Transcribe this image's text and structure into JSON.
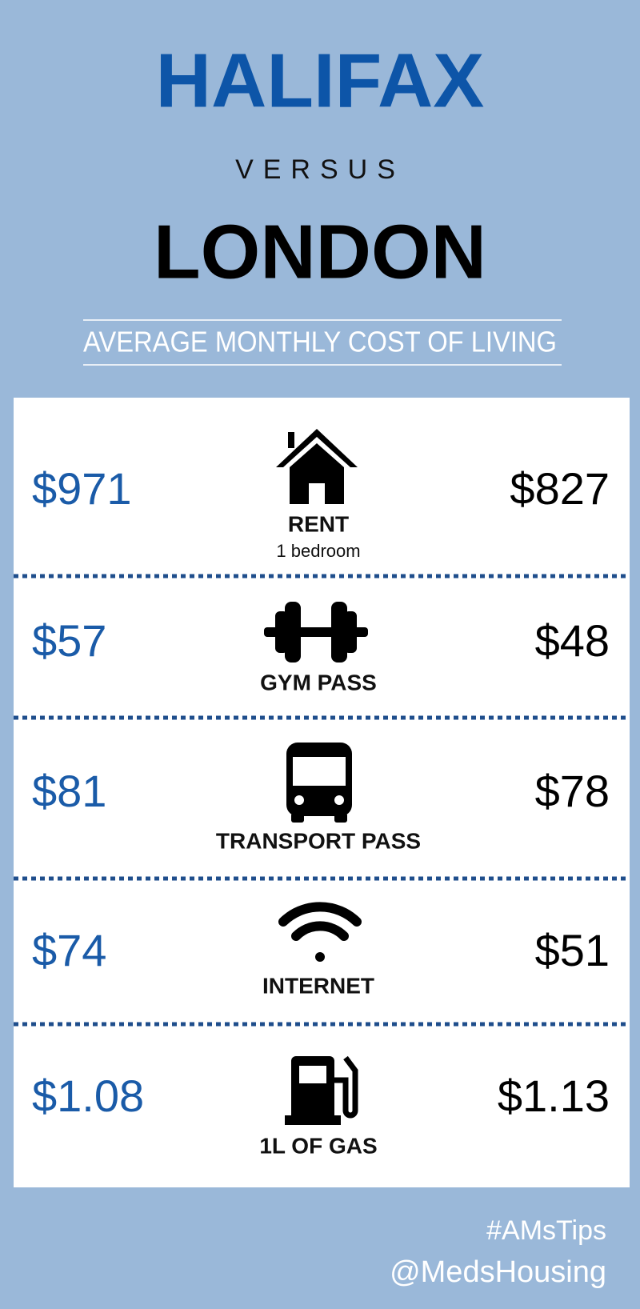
{
  "header": {
    "title": "HALIFAX",
    "versus": "VERSUS",
    "subtitle": "LONDON",
    "caption": "AVERAGE MONTHLY COST OF LIVING"
  },
  "items": [
    {
      "halifax": "$971",
      "label": "RENT",
      "note": "1 bedroom",
      "london": "$827"
    },
    {
      "halifax": "$57",
      "label": "GYM PASS",
      "london": "$48"
    },
    {
      "halifax": "$81",
      "label": "TRANSPORT PASS",
      "london": "$78"
    },
    {
      "halifax": "$74",
      "label": "INTERNET",
      "london": "$51"
    },
    {
      "halifax": "$1.08",
      "label": "1L OF GAS",
      "london": "$1.13"
    }
  ],
  "footer": {
    "hashtag": "#AMsTips",
    "handle": "@MedsHousing"
  }
}
